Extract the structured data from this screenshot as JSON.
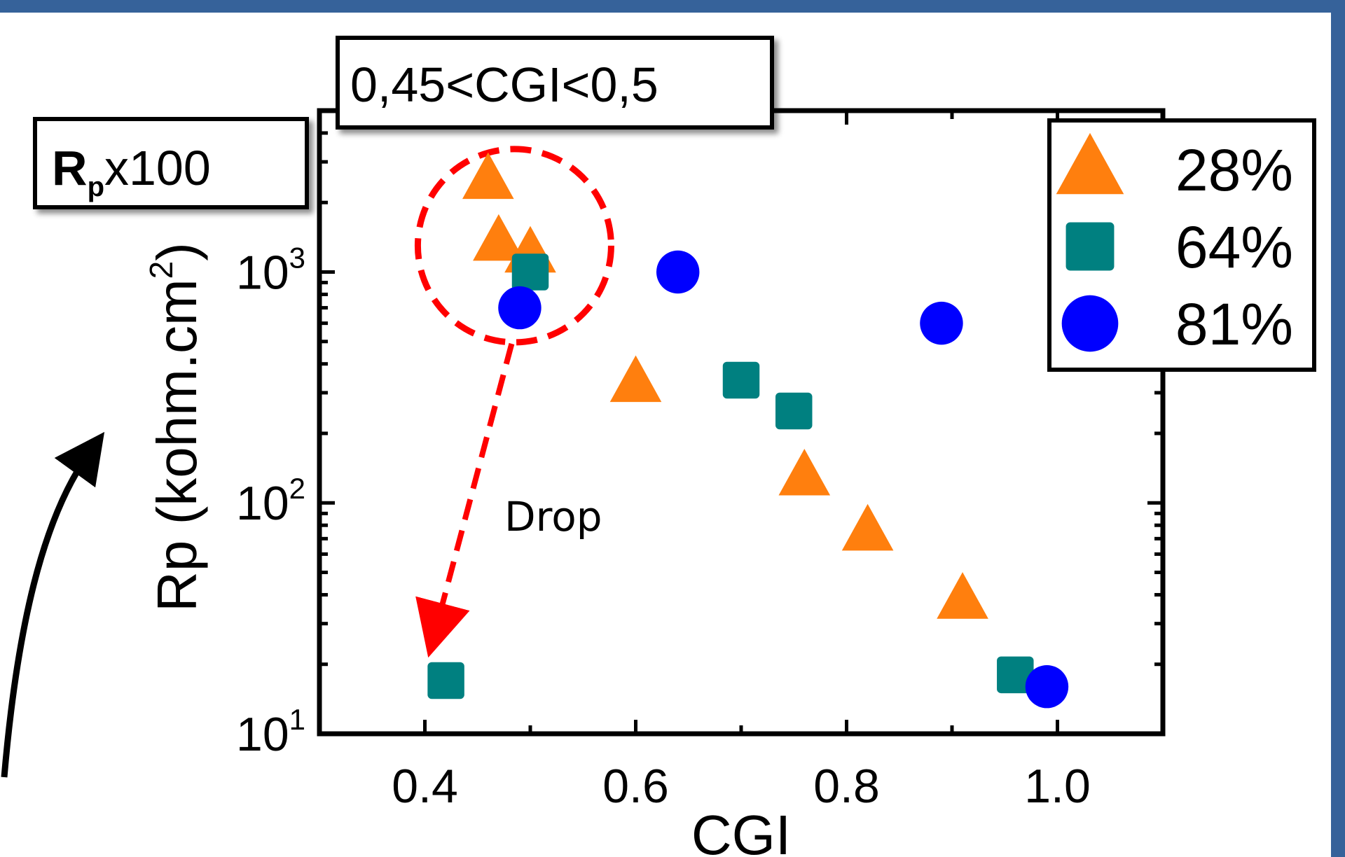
{
  "chart_data": {
    "type": "scatter",
    "title": "",
    "xlabel": "CGI",
    "ylabel": "Rp (kohm.cm²)",
    "ylabel_parts": {
      "pre": "Rp (kohm.cm",
      "sup": "2",
      "post": ")"
    },
    "x_scale": "linear",
    "y_scale": "log",
    "xlim": [
      0.3,
      1.1
    ],
    "ylim": [
      10,
      5000
    ],
    "x_ticks": [
      {
        "value": 0.4,
        "label": "0.4"
      },
      {
        "value": 0.6,
        "label": "0.6"
      },
      {
        "value": 0.8,
        "label": "0.8"
      },
      {
        "value": 1.0,
        "label": "1.0"
      }
    ],
    "y_ticks": [
      {
        "value": 10,
        "base": "10",
        "exp": "1"
      },
      {
        "value": 100,
        "base": "10",
        "exp": "2"
      },
      {
        "value": 1000,
        "base": "10",
        "exp": "3"
      }
    ],
    "legend_position": "top-right",
    "series": [
      {
        "name": "28%",
        "marker": "triangle",
        "color": "#ff7f0e",
        "points": [
          {
            "x": 0.46,
            "y": 2500
          },
          {
            "x": 0.47,
            "y": 1350
          },
          {
            "x": 0.5,
            "y": 1200
          },
          {
            "x": 0.6,
            "y": 330
          },
          {
            "x": 0.76,
            "y": 130
          },
          {
            "x": 0.82,
            "y": 75
          },
          {
            "x": 0.91,
            "y": 38
          }
        ]
      },
      {
        "name": "64%",
        "marker": "square",
        "color": "#008080",
        "points": [
          {
            "x": 0.5,
            "y": 1000
          },
          {
            "x": 0.7,
            "y": 340
          },
          {
            "x": 0.75,
            "y": 250
          },
          {
            "x": 0.42,
            "y": 17
          },
          {
            "x": 0.96,
            "y": 18
          }
        ]
      },
      {
        "name": "81%",
        "marker": "circle",
        "color": "#0000ff",
        "points": [
          {
            "x": 0.49,
            "y": 700
          },
          {
            "x": 0.64,
            "y": 1000
          },
          {
            "x": 0.89,
            "y": 600
          },
          {
            "x": 0.99,
            "y": 16
          }
        ]
      }
    ],
    "annotations": {
      "range_box": "0,45<CGI<0,5",
      "rp_box": {
        "bold": "R",
        "sub": "p",
        "rest": "x100"
      },
      "drop_label": "Drop",
      "highlight_center": {
        "x": 0.485,
        "y": 1300
      },
      "drop_target": {
        "x": 0.41,
        "y": 28
      }
    }
  }
}
